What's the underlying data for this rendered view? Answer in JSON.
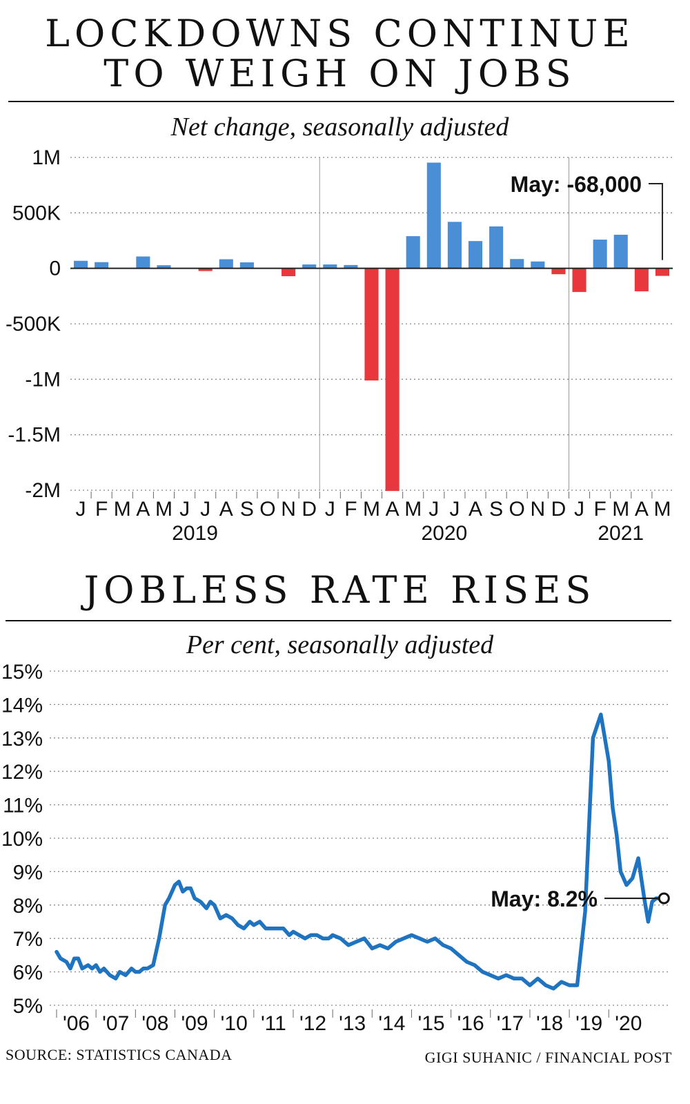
{
  "top": {
    "title_line1": "LOCKDOWNS CONTINUE",
    "title_line2": "TO WEIGH ON JOBS",
    "subtitle": "Net change, seasonally adjusted",
    "annotation": "May: -68,000"
  },
  "bottom": {
    "title": "JOBLESS RATE RISES",
    "subtitle": "Per cent, seasonally adjusted",
    "annotation": "May: 8.2%"
  },
  "footer": {
    "source": "SOURCE: STATISTICS CANADA",
    "credit": "GIGI SUHANIC / FINANCIAL POST"
  },
  "colors": {
    "positive": "#4a8fd6",
    "negative": "#e8383d",
    "line": "#1e74c0",
    "grid": "#888888",
    "text": "#111111"
  },
  "chart_data": [
    {
      "type": "bar",
      "title": "",
      "ylabel": "",
      "ylim": [
        -2000000,
        1000000
      ],
      "yticks": [
        1000000,
        500000,
        0,
        -500000,
        -1000000,
        -1500000,
        -2000000
      ],
      "ytick_labels": [
        "1M",
        "500K",
        "0",
        "-500K",
        "-1M",
        "-1.5M",
        "-2M"
      ],
      "grid": true,
      "categories": [
        "J",
        "F",
        "M",
        "A",
        "M",
        "J",
        "J",
        "A",
        "S",
        "O",
        "N",
        "D",
        "J",
        "F",
        "M",
        "A",
        "M",
        "J",
        "J",
        "A",
        "S",
        "O",
        "N",
        "D",
        "J",
        "F",
        "M",
        "A",
        "M"
      ],
      "years": [
        {
          "label": "2019",
          "start": 0,
          "end": 11
        },
        {
          "label": "2020",
          "start": 12,
          "end": 23
        },
        {
          "label": "2021",
          "start": 24,
          "end": 28
        }
      ],
      "values": [
        68000,
        56000,
        0,
        107000,
        28000,
        0,
        -24000,
        82000,
        54000,
        0,
        -71000,
        35000,
        35000,
        30000,
        -1011000,
        -2007000,
        290000,
        953000,
        419000,
        246000,
        378000,
        84000,
        62000,
        -53000,
        -213000,
        259000,
        303000,
        -207000,
        -68000
      ]
    },
    {
      "type": "line",
      "title": "",
      "ylabel": "",
      "ylim": [
        5,
        15
      ],
      "yticks": [
        5,
        6,
        7,
        8,
        9,
        10,
        11,
        12,
        13,
        14,
        15
      ],
      "ytick_labels": [
        "5%",
        "6%",
        "7%",
        "8%",
        "9%",
        "10%",
        "11%",
        "12%",
        "13%",
        "14%",
        "15%"
      ],
      "xlim": [
        2006,
        2021.5
      ],
      "xtick_labels": [
        "'06",
        "'07",
        "'08",
        "'09",
        "'10",
        "'11",
        "'12",
        "'13",
        "'14",
        "'15",
        "'16",
        "'17",
        "'18",
        "'19",
        "'20"
      ],
      "grid": true,
      "series": [
        {
          "x": [
            2006.0,
            2006.1,
            2006.25,
            2006.35,
            2006.45,
            2006.55,
            2006.65,
            2006.8,
            2006.9,
            2007.0,
            2007.1,
            2007.2,
            2007.35,
            2007.5,
            2007.6,
            2007.75,
            2007.9,
            2008.0,
            2008.1,
            2008.2,
            2008.3,
            2008.45,
            2008.6,
            2008.75,
            2008.85,
            2009.0,
            2009.1,
            2009.2,
            2009.3,
            2009.4,
            2009.5,
            2009.65,
            2009.8,
            2009.9,
            2010.0,
            2010.15,
            2010.3,
            2010.45,
            2010.6,
            2010.75,
            2010.9,
            2011.0,
            2011.15,
            2011.3,
            2011.45,
            2011.6,
            2011.75,
            2011.9,
            2012.0,
            2012.15,
            2012.3,
            2012.45,
            2012.6,
            2012.75,
            2012.9,
            2013.0,
            2013.2,
            2013.4,
            2013.6,
            2013.8,
            2014.0,
            2014.2,
            2014.4,
            2014.6,
            2014.8,
            2015.0,
            2015.2,
            2015.4,
            2015.6,
            2015.8,
            2016.0,
            2016.2,
            2016.4,
            2016.6,
            2016.8,
            2017.0,
            2017.2,
            2017.4,
            2017.6,
            2017.8,
            2018.0,
            2018.2,
            2018.4,
            2018.6,
            2018.8,
            2019.0,
            2019.2,
            2019.4,
            2019.6,
            2019.8,
            2020.0,
            2020.1,
            2020.2,
            2020.3,
            2020.45,
            2020.6,
            2020.75,
            2020.9,
            2021.0,
            2021.1,
            2021.2,
            2021.3,
            2021.4
          ],
          "y": [
            6.6,
            6.4,
            6.3,
            6.1,
            6.4,
            6.4,
            6.1,
            6.2,
            6.1,
            6.2,
            6.0,
            6.1,
            5.9,
            5.8,
            6.0,
            5.9,
            6.1,
            6.0,
            6.0,
            6.1,
            6.1,
            6.2,
            7.0,
            8.0,
            8.2,
            8.6,
            8.7,
            8.4,
            8.5,
            8.5,
            8.2,
            8.1,
            7.9,
            8.1,
            8.0,
            7.6,
            7.7,
            7.6,
            7.4,
            7.3,
            7.5,
            7.4,
            7.5,
            7.3,
            7.3,
            7.3,
            7.3,
            7.1,
            7.2,
            7.1,
            7.0,
            7.1,
            7.1,
            7.0,
            7.0,
            7.1,
            7.0,
            6.8,
            6.9,
            7.0,
            6.7,
            6.8,
            6.7,
            6.9,
            7.0,
            7.1,
            7.0,
            6.9,
            7.0,
            6.8,
            6.7,
            6.5,
            6.3,
            6.2,
            6.0,
            5.9,
            5.8,
            5.9,
            5.8,
            5.8,
            5.6,
            5.8,
            5.6,
            5.5,
            5.7,
            5.6,
            5.6,
            7.8,
            13.0,
            13.7,
            12.3,
            10.9,
            10.1,
            9.0,
            8.6,
            8.8,
            9.4,
            8.2,
            7.5,
            8.1,
            8.2,
            8.2,
            8.2
          ]
        }
      ]
    }
  ]
}
